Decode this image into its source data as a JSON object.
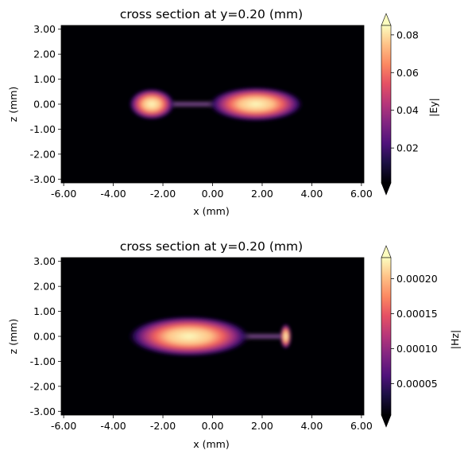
{
  "chart_data": [
    {
      "type": "heatmap",
      "title": "cross section at y=0.20 (mm)",
      "xlabel": "x (mm)",
      "ylabel": "z (mm)",
      "xlim": [
        -6.1,
        6.1
      ],
      "ylim": [
        -3.15,
        3.15
      ],
      "xticks": [
        -6.0,
        -4.0,
        -2.0,
        0.0,
        2.0,
        4.0,
        6.0
      ],
      "xtick_labels": [
        "-6.00",
        "-4.00",
        "-2.00",
        "0.00",
        "2.00",
        "4.00",
        "6.00"
      ],
      "yticks": [
        -3.0,
        -2.0,
        -1.0,
        0.0,
        1.0,
        2.0,
        3.0
      ],
      "ytick_labels": [
        "-3.00",
        "-2.00",
        "-1.00",
        "0.00",
        "1.00",
        "2.00",
        "3.00"
      ],
      "colorbar": {
        "label": "|Ey|",
        "colormap": "magma",
        "range": [
          0.0015,
          0.085
        ],
        "ticks": [
          0.02,
          0.04,
          0.06,
          0.08
        ],
        "tick_labels": [
          "0.02",
          "0.04",
          "0.06",
          "0.08"
        ],
        "extend": "both"
      },
      "hotspots": [
        {
          "x": -2.45,
          "z": 0.0,
          "half_width": 0.75,
          "half_height": 0.2,
          "value": 0.085
        },
        {
          "x": 1.75,
          "z": 0.0,
          "half_width": 1.55,
          "half_height": 0.22,
          "value": 0.085
        }
      ],
      "strip": {
        "x_range": [
          -3.05,
          3.1
        ],
        "value": 0.012
      }
    },
    {
      "type": "heatmap",
      "title": "cross section at y=0.20 (mm)",
      "xlabel": "x (mm)",
      "ylabel": "z (mm)",
      "xlim": [
        -6.1,
        6.1
      ],
      "ylim": [
        -3.15,
        3.15
      ],
      "xticks": [
        -6.0,
        -4.0,
        -2.0,
        0.0,
        2.0,
        4.0,
        6.0
      ],
      "xtick_labels": [
        "-6.00",
        "-4.00",
        "-2.00",
        "0.00",
        "2.00",
        "4.00",
        "6.00"
      ],
      "yticks": [
        -3.0,
        -2.0,
        -1.0,
        0.0,
        1.0,
        2.0,
        3.0
      ],
      "ytick_labels": [
        "-3.00",
        "-2.00",
        "-1.00",
        "0.00",
        "1.00",
        "2.00",
        "3.00"
      ],
      "colorbar": {
        "label": "|Hz|",
        "colormap": "magma",
        "range": [
          5e-06,
          0.00023
        ],
        "ticks": [
          5e-05,
          0.0001,
          0.00015,
          0.0002
        ],
        "tick_labels": [
          "0.00005",
          "0.00010",
          "0.00015",
          "0.00020"
        ],
        "extend": "both"
      },
      "hotspots": [
        {
          "x": -0.95,
          "z": 0.0,
          "half_width": 2.0,
          "half_height": 0.26,
          "value": 0.00023
        },
        {
          "x": 2.95,
          "z": 0.0,
          "half_width": 0.18,
          "half_height": 0.16,
          "value": 0.00023
        }
      ],
      "strip": {
        "x_range": [
          -3.05,
          3.1
        ],
        "value": 3.5e-05
      }
    }
  ]
}
